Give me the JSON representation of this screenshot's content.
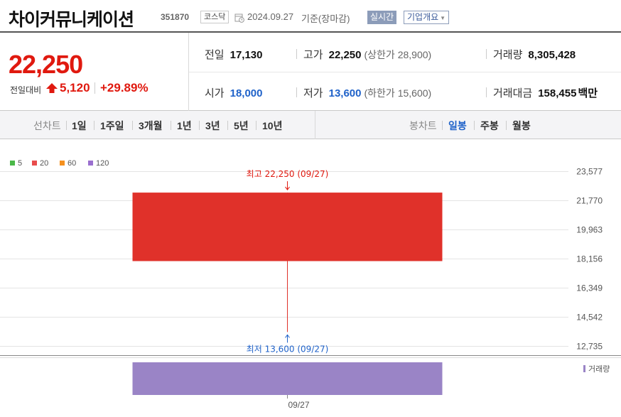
{
  "header": {
    "company_name": "차이커뮤니케이션",
    "stock_code": "351870",
    "market": "코스닥",
    "date": "2024.09.27",
    "basis": "기준(장마감)",
    "realtime_label": "실시간",
    "overview_label": "기업개요"
  },
  "price": {
    "current": "22,250",
    "change_label": "전일대비",
    "change_amount": "5,120",
    "change_rate": "+29.89%",
    "up_color": "#e0190f"
  },
  "stats": {
    "prev_close_label": "전일",
    "prev_close": "17,130",
    "high_label": "고가",
    "high": "22,250",
    "upper_limit": "(상한가 28,900)",
    "volume_label": "거래량",
    "volume": "8,305,428",
    "open_label": "시가",
    "open": "18,000",
    "low_label": "저가",
    "low": "13,600",
    "lower_limit": "(하한가 15,600)",
    "amount_label": "거래대금",
    "amount": "158,455",
    "amount_unit": "백만"
  },
  "tabs": {
    "line_chart_label": "선차트",
    "line_periods": [
      "1일",
      "1주일",
      "3개월",
      "1년",
      "3년",
      "5년",
      "10년"
    ],
    "candle_chart_label": "봉차트",
    "candle_periods": [
      "일봉",
      "주봉",
      "월봉"
    ],
    "active_candle": "일봉"
  },
  "chart_data": {
    "type": "candlestick",
    "legend": [
      {
        "name": "5",
        "color": "#4ab848"
      },
      {
        "name": "20",
        "color": "#e84c4c"
      },
      {
        "name": "60",
        "color": "#f5901e"
      },
      {
        "name": "120",
        "color": "#9a6fcf"
      }
    ],
    "x": [
      "09/27"
    ],
    "open": [
      18000
    ],
    "high": [
      22250
    ],
    "low": [
      13600
    ],
    "close": [
      22250
    ],
    "volume": [
      8305428
    ],
    "y_ticks": [
      "23,577",
      "21,770",
      "19,963",
      "18,156",
      "16,349",
      "14,542",
      "12,735"
    ],
    "y_tick_values": [
      23577,
      21770,
      19963,
      18156,
      16349,
      14542,
      12735
    ],
    "ylim": [
      12735,
      23577
    ],
    "high_annotation": "최고 22,250 (09/27)",
    "low_annotation": "최저 13,600 (09/27)",
    "volume_label": "거래량",
    "candle_color": "#e0312a",
    "volume_color": "#9a84c6",
    "high_annotation_color": "#e0190f",
    "low_annotation_color": "#1f62c9"
  }
}
